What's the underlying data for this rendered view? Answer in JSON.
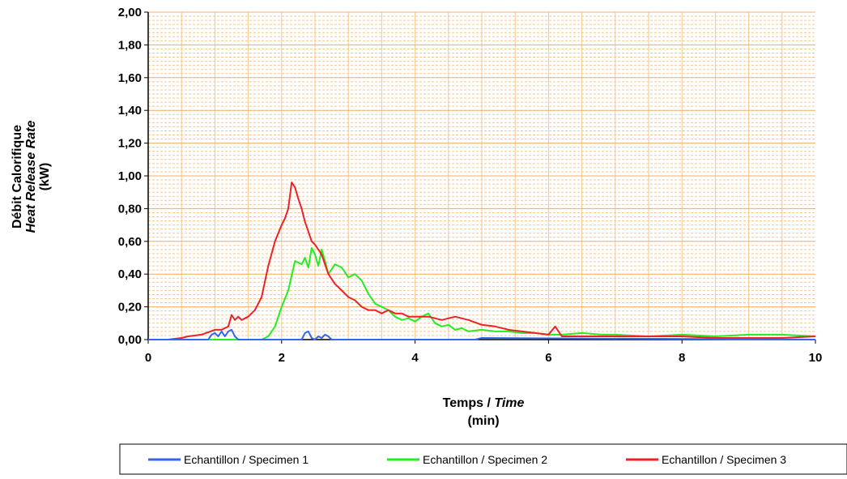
{
  "chart_data": {
    "type": "line",
    "title": "",
    "xlabel": {
      "line1_a": "Temps / ",
      "line1_b": "Time",
      "line2": "(min)"
    },
    "ylabel": {
      "line1": "Débit Calorifique",
      "line2": "Heat Release Rate",
      "line3": "(kW)"
    },
    "xlim": [
      0,
      10
    ],
    "ylim": [
      0,
      2.0
    ],
    "x_ticks": [
      0,
      2,
      4,
      6,
      8,
      10
    ],
    "x_tick_labels": [
      "0",
      "2",
      "4",
      "6",
      "8",
      "10"
    ],
    "y_ticks": [
      0,
      0.2,
      0.4,
      0.6,
      0.8,
      1.0,
      1.2,
      1.4,
      1.6,
      1.8,
      2.0
    ],
    "y_tick_labels": [
      "0,00",
      "0,20",
      "0,40",
      "0,60",
      "0,80",
      "1,00",
      "1,20",
      "1,40",
      "1,60",
      "1,80",
      "2,00"
    ],
    "grid": true,
    "legend_position": "bottom",
    "series": [
      {
        "name": "Echantillon / Specimen 1",
        "color": "#3366ee",
        "x": [
          0,
          0.9,
          0.95,
          1.0,
          1.05,
          1.1,
          1.15,
          1.2,
          1.25,
          1.3,
          1.35,
          1.4,
          2.3,
          2.35,
          2.4,
          2.45,
          2.5,
          2.55,
          2.6,
          2.65,
          2.7,
          2.75,
          3.0,
          4.9,
          5.0,
          10
        ],
        "y": [
          0,
          0,
          0.03,
          0.04,
          0.02,
          0.05,
          0.02,
          0.05,
          0.06,
          0.02,
          0,
          0,
          0,
          0.04,
          0.05,
          0.01,
          0,
          0.02,
          0.01,
          0.03,
          0.02,
          0,
          0,
          0,
          0.01,
          0
        ]
      },
      {
        "name": "Echantillon / Specimen 2",
        "color": "#22ee22",
        "x": [
          0,
          1.7,
          1.8,
          1.9,
          2.0,
          2.1,
          2.2,
          2.3,
          2.35,
          2.4,
          2.45,
          2.5,
          2.55,
          2.6,
          2.65,
          2.7,
          2.8,
          2.9,
          3.0,
          3.1,
          3.2,
          3.3,
          3.4,
          3.5,
          3.6,
          3.7,
          3.8,
          3.9,
          4.0,
          4.1,
          4.2,
          4.3,
          4.4,
          4.5,
          4.6,
          4.7,
          4.8,
          5.0,
          5.2,
          5.4,
          5.6,
          5.8,
          6.0,
          6.2,
          6.5,
          6.8,
          7.0,
          7.5,
          8.0,
          8.5,
          9.0,
          9.5,
          10
        ],
        "y": [
          0,
          0,
          0.02,
          0.08,
          0.2,
          0.3,
          0.48,
          0.46,
          0.5,
          0.44,
          0.56,
          0.52,
          0.45,
          0.55,
          0.48,
          0.4,
          0.46,
          0.44,
          0.38,
          0.4,
          0.36,
          0.28,
          0.22,
          0.2,
          0.18,
          0.14,
          0.12,
          0.13,
          0.11,
          0.14,
          0.16,
          0.1,
          0.08,
          0.09,
          0.06,
          0.07,
          0.05,
          0.06,
          0.05,
          0.05,
          0.04,
          0.04,
          0.03,
          0.03,
          0.04,
          0.03,
          0.03,
          0.02,
          0.03,
          0.02,
          0.03,
          0.03,
          0.02
        ]
      },
      {
        "name": "Echantillon / Specimen 3",
        "color": "#ee2222",
        "x": [
          0,
          0.3,
          0.5,
          0.6,
          0.8,
          1.0,
          1.1,
          1.2,
          1.25,
          1.3,
          1.35,
          1.4,
          1.5,
          1.6,
          1.7,
          1.8,
          1.9,
          2.0,
          2.05,
          2.1,
          2.15,
          2.2,
          2.25,
          2.3,
          2.35,
          2.4,
          2.45,
          2.5,
          2.6,
          2.7,
          2.8,
          2.9,
          3.0,
          3.1,
          3.2,
          3.3,
          3.4,
          3.5,
          3.6,
          3.7,
          3.8,
          3.9,
          4.0,
          4.2,
          4.4,
          4.6,
          4.8,
          5.0,
          5.2,
          5.4,
          5.6,
          5.8,
          6.0,
          6.1,
          6.2,
          6.4,
          6.6,
          6.8,
          7.0,
          7.5,
          8.0,
          8.5,
          9.0,
          9.5,
          10
        ],
        "y": [
          0,
          0,
          0.01,
          0.02,
          0.03,
          0.06,
          0.06,
          0.08,
          0.15,
          0.12,
          0.14,
          0.12,
          0.14,
          0.18,
          0.26,
          0.45,
          0.6,
          0.7,
          0.74,
          0.8,
          0.96,
          0.93,
          0.86,
          0.8,
          0.72,
          0.66,
          0.6,
          0.58,
          0.52,
          0.4,
          0.34,
          0.3,
          0.26,
          0.24,
          0.2,
          0.18,
          0.18,
          0.16,
          0.18,
          0.16,
          0.16,
          0.14,
          0.14,
          0.14,
          0.12,
          0.14,
          0.12,
          0.09,
          0.08,
          0.06,
          0.05,
          0.04,
          0.03,
          0.08,
          0.02,
          0.02,
          0.02,
          0.02,
          0.02,
          0.02,
          0.02,
          0.01,
          0.01,
          0.01,
          0.02
        ]
      }
    ]
  }
}
